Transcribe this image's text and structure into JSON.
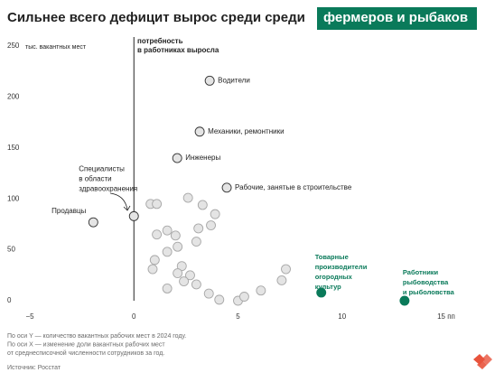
{
  "chart_data": {
    "type": "scatter",
    "title": "Сильнее всего дефицит вырос среди среди",
    "title_highlight": "фермеров и рыбаков",
    "y_label": "тыс. вакантных мест",
    "annotation": [
      "потребность",
      "в работниках выросла"
    ],
    "xlim": [
      -5,
      15
    ],
    "ylim": [
      0,
      250
    ],
    "xticks": [
      {
        "value": -5,
        "label": "−5"
      },
      0,
      5,
      10,
      {
        "value": 15,
        "label": "15 пп"
      }
    ],
    "yticks": [
      0,
      50,
      100,
      150,
      200,
      250
    ],
    "series": [
      {
        "color": "#e4e4e4",
        "x": [
          3.64,
          3.16,
          2.08,
          4.46,
          0,
          -1.95,
          0.8,
          1.1,
          2.6,
          3.3,
          3.9,
          3.7,
          3.1,
          1.6,
          1.1,
          2.0,
          1.6,
          3.0,
          1.0,
          0.9,
          2.3,
          2.7,
          2.1,
          3.0,
          2.4,
          1.6,
          3.6,
          4.1,
          5.0,
          5.3,
          6.1,
          7.3,
          7.1,
          2.1
        ],
        "values": [
          216,
          166,
          140,
          111,
          83,
          77,
          95,
          95,
          101,
          94,
          85,
          74,
          71,
          69,
          65,
          64,
          48,
          58,
          40,
          31,
          34,
          25,
          27,
          16,
          19,
          12,
          7,
          1,
          0,
          4,
          10,
          31,
          20,
          53
        ],
        "labels": [
          [
            "Водители"
          ],
          [
            "Механики, ремонтники"
          ],
          [
            "Инженеры"
          ],
          [
            "Рабочие, занятые в строительстве"
          ],
          [
            "Специалисты",
            "в области",
            "здравоохранения"
          ],
          [
            "Продавцы"
          ],
          null,
          null,
          null,
          null,
          null,
          null,
          null,
          null,
          null,
          null,
          null,
          null,
          null,
          null,
          null,
          null,
          null,
          null,
          null,
          null,
          null,
          null,
          null,
          null,
          null,
          null,
          null,
          null
        ]
      },
      {
        "color": "#0a7a5a",
        "x": [
          9.0,
          13.0
        ],
        "values": [
          8,
          0
        ],
        "labels": [
          [
            "Товарные",
            "производители",
            "огородных",
            "культур"
          ],
          [
            "Работники",
            "рыбоводства",
            "и рыболовства"
          ]
        ]
      }
    ],
    "footnote": [
      "По оси Y — количество вакантных рабочих мест в 2024 году.",
      "По оси X — изменение доли вакантных рабочих мест",
      "от среднесписочной численности сотрудников за год."
    ],
    "source": "Источник: Росстат"
  }
}
